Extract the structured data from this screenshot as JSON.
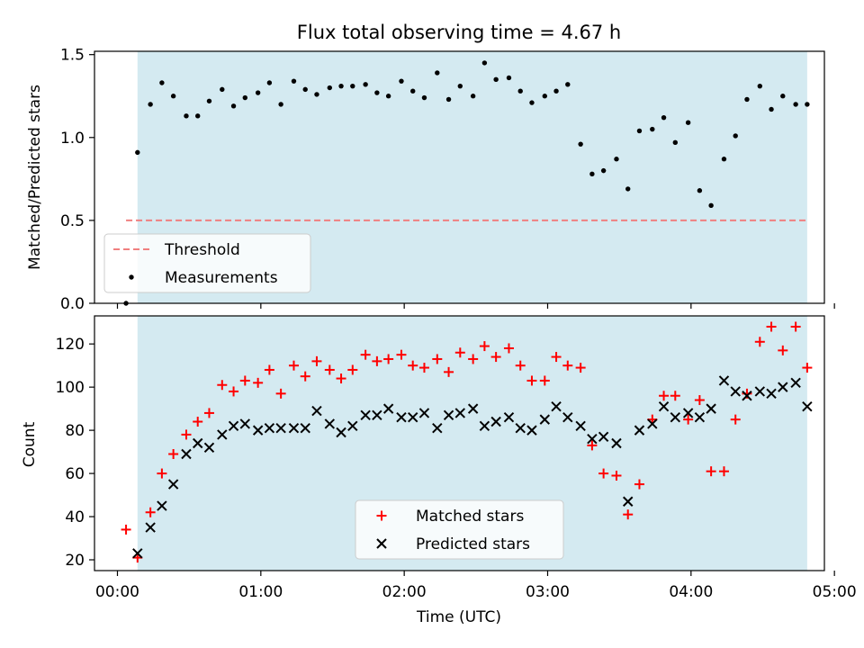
{
  "title": "Flux total observing time = 4.67 h",
  "colors": {
    "shade": "#d4eaf1",
    "threshold": "#f08080",
    "matched": "#ff0000",
    "predicted": "#000000",
    "measure": "#000000"
  },
  "chart_data": [
    {
      "type": "scatter",
      "ylabel": "Matched/Predicted stars",
      "xlim": [
        -0.16,
        4.93
      ],
      "ylim": [
        0,
        1.52
      ],
      "yticks": [
        0.0,
        0.5,
        1.0,
        1.5
      ],
      "ytick_labels": [
        "0.0",
        "0.5",
        "1.0",
        "1.5"
      ],
      "shaded_span": [
        0.14,
        4.81
      ],
      "threshold": {
        "label": "Threshold",
        "y": 0.5,
        "x_range": [
          0.06,
          4.81
        ]
      },
      "measurements": {
        "label": "Measurements",
        "x": [
          0.06,
          0.14,
          0.23,
          0.31,
          0.39,
          0.48,
          0.56,
          0.64,
          0.73,
          0.81,
          0.89,
          0.98,
          1.06,
          1.14,
          1.23,
          1.31,
          1.39,
          1.48,
          1.56,
          1.64,
          1.73,
          1.81,
          1.89,
          1.98,
          2.06,
          2.14,
          2.23,
          2.31,
          2.39,
          2.48,
          2.56,
          2.64,
          2.73,
          2.81,
          2.89,
          2.98,
          3.06,
          3.14,
          3.23,
          3.31,
          3.39,
          3.48,
          3.56,
          3.64,
          3.73,
          3.81,
          3.89,
          3.98,
          4.06,
          4.14,
          4.23,
          4.31,
          4.39,
          4.48,
          4.56,
          4.64,
          4.73,
          4.81
        ],
        "y": [
          0.0,
          0.91,
          1.2,
          1.33,
          1.25,
          1.13,
          1.13,
          1.22,
          1.29,
          1.19,
          1.24,
          1.27,
          1.33,
          1.2,
          1.34,
          1.29,
          1.26,
          1.3,
          1.31,
          1.31,
          1.32,
          1.27,
          1.25,
          1.34,
          1.28,
          1.24,
          1.39,
          1.23,
          1.31,
          1.25,
          1.45,
          1.35,
          1.36,
          1.28,
          1.21,
          1.25,
          1.28,
          1.32,
          0.96,
          0.78,
          0.8,
          0.87,
          0.69,
          1.04,
          1.05,
          1.12,
          0.97,
          1.09,
          0.68,
          0.59,
          0.87,
          1.01,
          1.23,
          1.31,
          1.17,
          1.25,
          1.2,
          1.2
        ]
      }
    },
    {
      "type": "scatter",
      "xlabel": "Time (UTC)",
      "ylabel": "Count",
      "xlim": [
        -0.16,
        4.93
      ],
      "ylim": [
        15,
        133
      ],
      "yticks": [
        20,
        40,
        60,
        80,
        100,
        120
      ],
      "xticks": [
        0,
        1,
        2,
        3,
        4,
        5
      ],
      "xtick_labels": [
        "00:00",
        "01:00",
        "02:00",
        "03:00",
        "04:00",
        "05:00"
      ],
      "shaded_span": [
        0.14,
        4.81
      ],
      "series": [
        {
          "name": "Matched stars",
          "marker": "plus",
          "x": [
            0.06,
            0.14,
            0.23,
            0.31,
            0.39,
            0.48,
            0.56,
            0.64,
            0.73,
            0.81,
            0.89,
            0.98,
            1.06,
            1.14,
            1.23,
            1.31,
            1.39,
            1.48,
            1.56,
            1.64,
            1.73,
            1.81,
            1.89,
            1.98,
            2.06,
            2.14,
            2.23,
            2.31,
            2.39,
            2.48,
            2.56,
            2.64,
            2.73,
            2.81,
            2.89,
            2.98,
            3.06,
            3.14,
            3.23,
            3.31,
            3.39,
            3.48,
            3.56,
            3.64,
            3.73,
            3.81,
            3.89,
            3.98,
            4.06,
            4.14,
            4.23,
            4.31,
            4.39,
            4.48,
            4.56,
            4.64,
            4.73,
            4.81
          ],
          "y": [
            34,
            21,
            42,
            60,
            69,
            78,
            84,
            88,
            101,
            98,
            103,
            102,
            108,
            97,
            110,
            105,
            112,
            108,
            104,
            108,
            115,
            112,
            113,
            115,
            110,
            109,
            113,
            107,
            116,
            113,
            119,
            114,
            118,
            110,
            103,
            103,
            114,
            110,
            109,
            73,
            60,
            59,
            41,
            55,
            85,
            96,
            96,
            85,
            94,
            61,
            61,
            85,
            97,
            121,
            128,
            117,
            128,
            109
          ]
        },
        {
          "name": "Predicted stars",
          "marker": "x",
          "x": [
            0.14,
            0.23,
            0.31,
            0.39,
            0.48,
            0.56,
            0.64,
            0.73,
            0.81,
            0.89,
            0.98,
            1.06,
            1.14,
            1.23,
            1.31,
            1.39,
            1.48,
            1.56,
            1.64,
            1.73,
            1.81,
            1.89,
            1.98,
            2.06,
            2.14,
            2.23,
            2.31,
            2.39,
            2.48,
            2.56,
            2.64,
            2.73,
            2.81,
            2.89,
            2.98,
            3.06,
            3.14,
            3.23,
            3.31,
            3.39,
            3.48,
            3.56,
            3.64,
            3.73,
            3.81,
            3.89,
            3.98,
            4.06,
            4.14,
            4.23,
            4.31,
            4.39,
            4.48,
            4.56,
            4.64,
            4.73,
            4.81
          ],
          "y": [
            23,
            35,
            45,
            55,
            69,
            74,
            72,
            78,
            82,
            83,
            80,
            81,
            81,
            81,
            81,
            89,
            83,
            79,
            82,
            87,
            87,
            90,
            86,
            86,
            88,
            81,
            87,
            88,
            90,
            82,
            84,
            86,
            81,
            80,
            85,
            91,
            86,
            82,
            76,
            77,
            74,
            47,
            80,
            83,
            91,
            86,
            88,
            86,
            90,
            103,
            98,
            96,
            98,
            97,
            100,
            102,
            91
          ]
        }
      ]
    }
  ]
}
